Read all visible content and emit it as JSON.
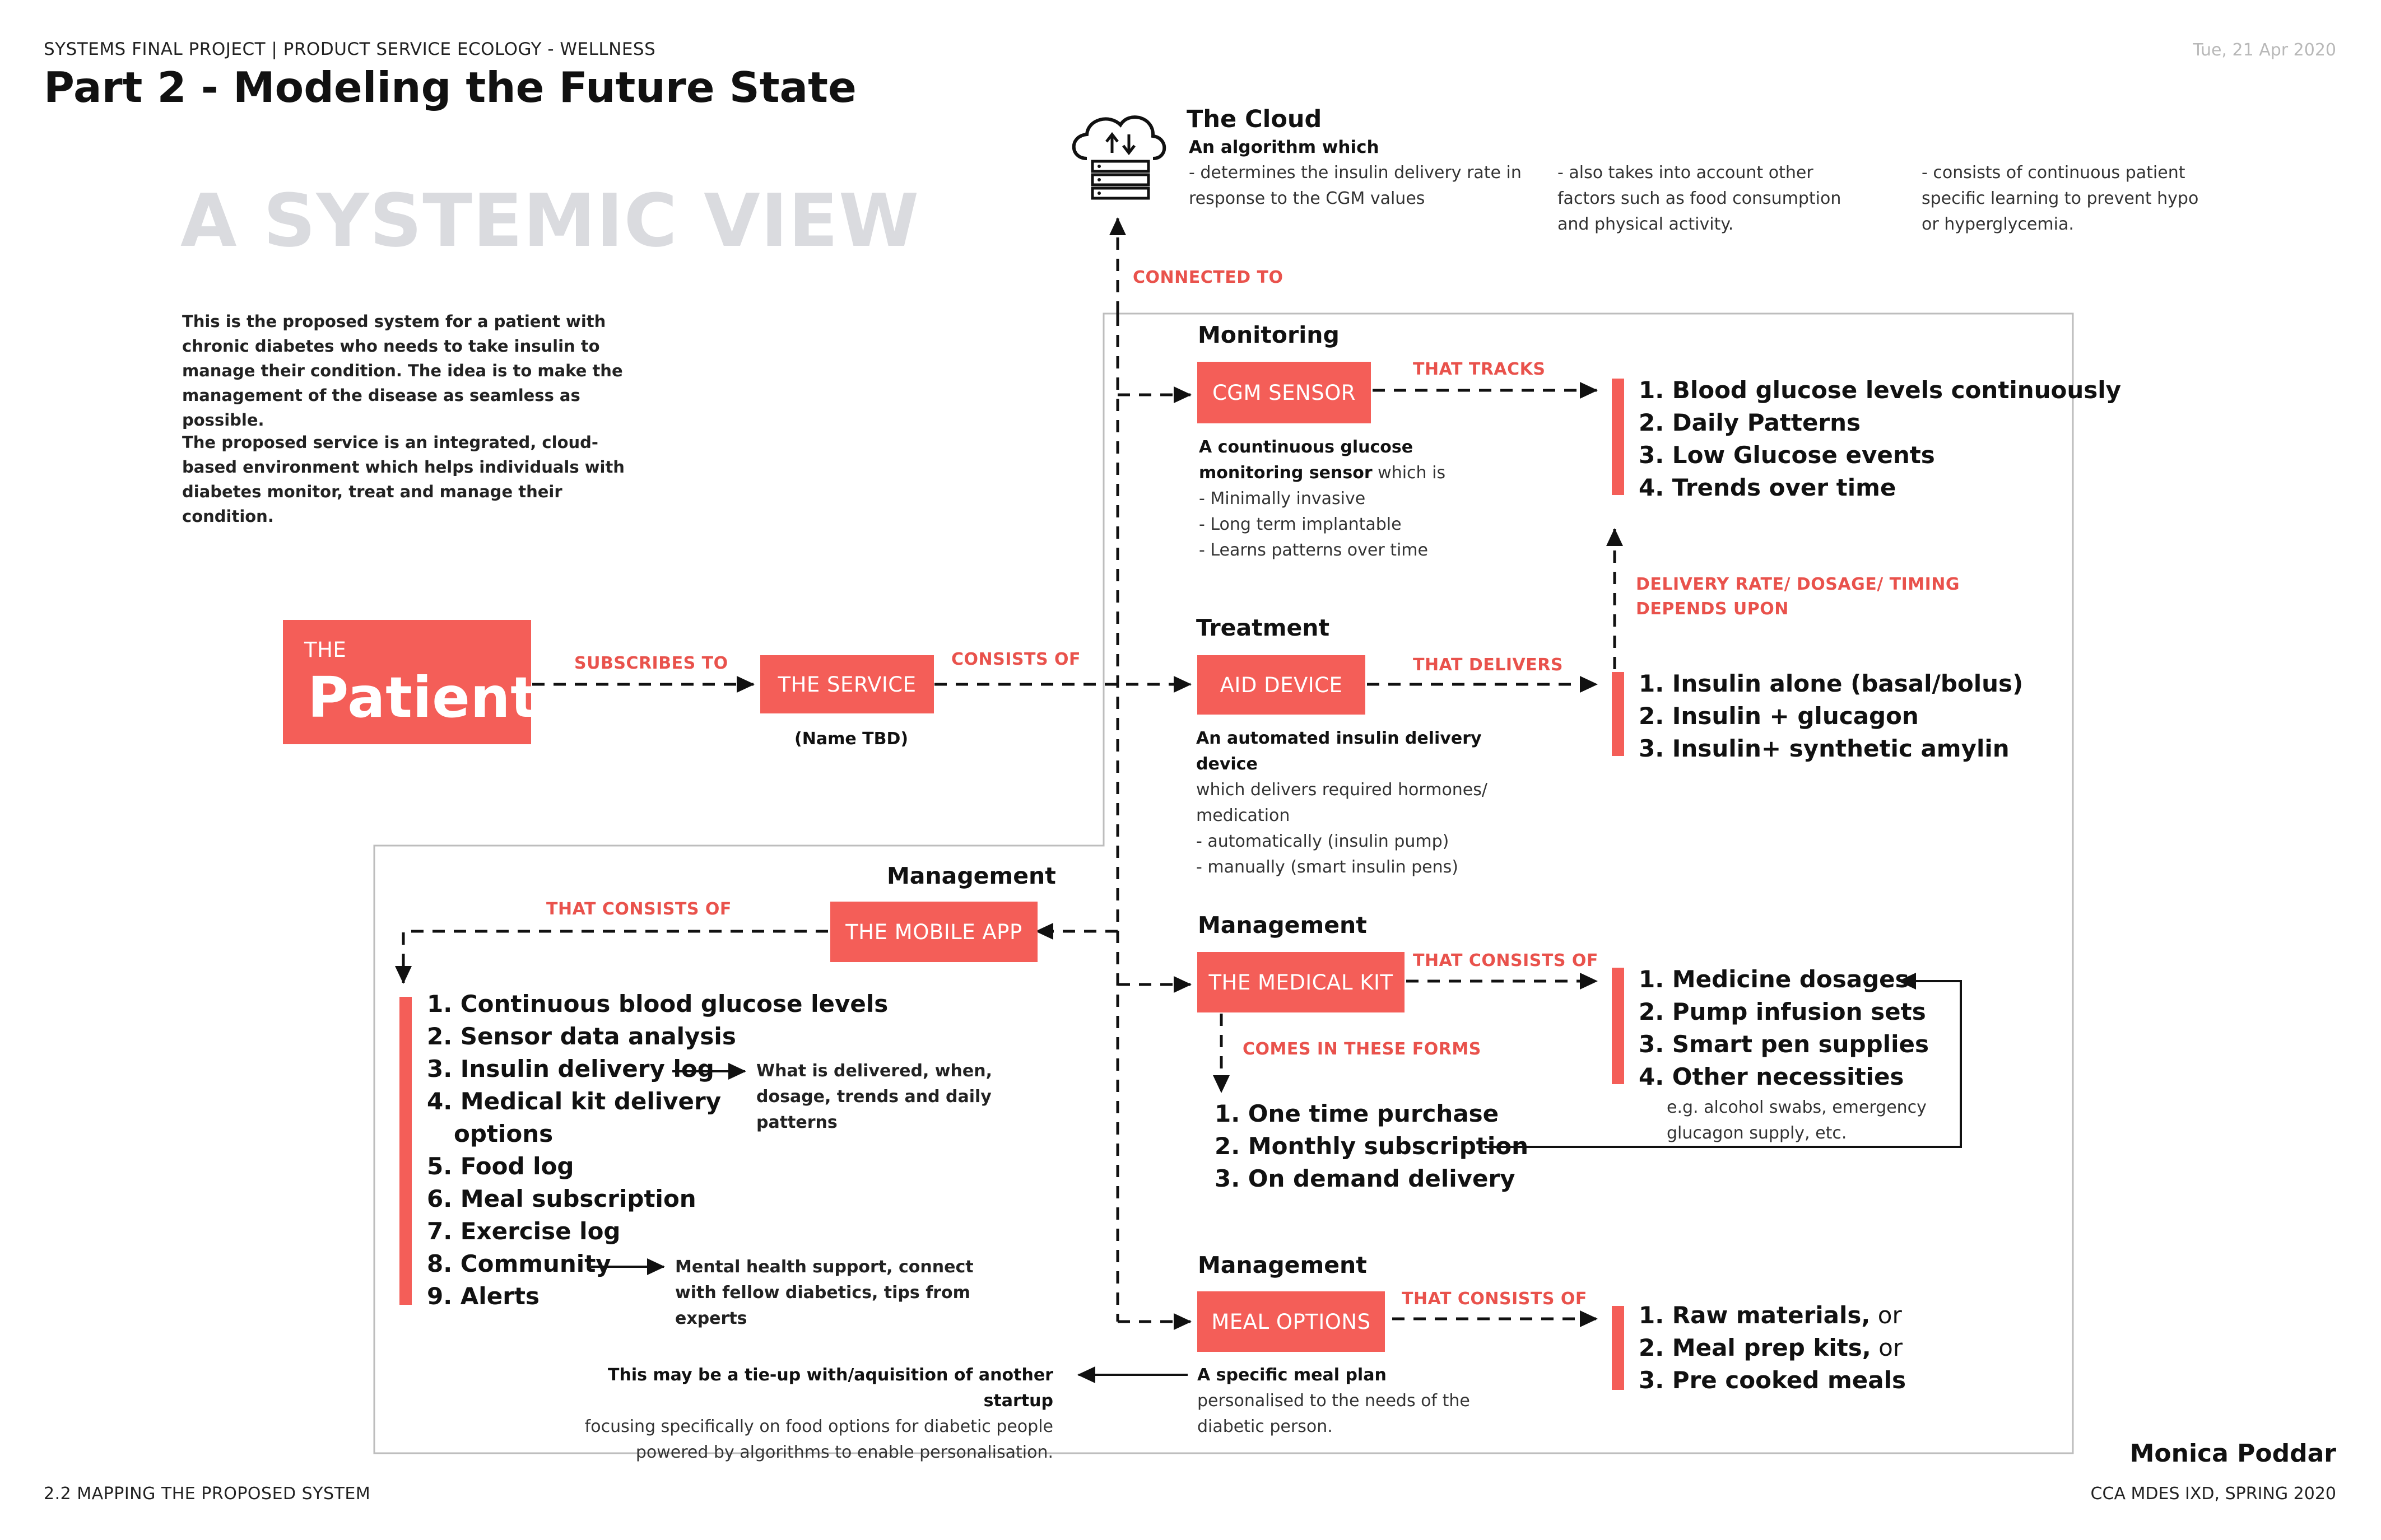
{
  "header": {
    "project": "SYSTEMS FINAL PROJECT | PRODUCT SERVICE ECOLOGY - WELLNESS",
    "title": "Part 2 - Modeling the Future State",
    "date": "Tue, 21 Apr 2020"
  },
  "systemic_view": "A SYSTEMIC VIEW",
  "intro": {
    "p1": "This is the proposed system for a patient with chronic diabetes who needs to take insulin to manage their condition. The idea is to make the management of the disease as seamless as possible.",
    "p2": "The proposed service is an integrated, cloud-based environment which helps individuals with diabetes monitor, treat and manage their condition."
  },
  "cloud": {
    "title": "The Cloud",
    "subtitle": "An algorithm which",
    "notes": [
      "- determines the insulin delivery rate in response to the CGM values",
      "- also takes into account other factors such as food consumption and physical activity.",
      "- consists of continuous patient specific learning to prevent hypo or hyperglycemia."
    ],
    "connector": "CONNECTED TO"
  },
  "patient": {
    "pre": "THE",
    "main": "Patient"
  },
  "service": {
    "label": "THE SERVICE",
    "note": "(Name TBD)"
  },
  "connectors": {
    "subscribes": "SUBSCRIBES TO",
    "consists": "CONSISTS OF",
    "tracks": "THAT TRACKS",
    "delivers": "THAT DELIVERS",
    "rate_line1": "DELIVERY RATE/ DOSAGE/ TIMING",
    "rate_line2": "DEPENDS UPON",
    "kit_consists": "THAT CONSISTS OF",
    "forms": "COMES IN THESE FORMS",
    "meal_consists": "THAT CONSISTS OF",
    "app_consists": "THAT CONSISTS OF"
  },
  "monitoring": {
    "section": "Monitoring",
    "box": "CGM SENSOR",
    "desc_bold": "A countinuous glucose monitoring sensor",
    "desc_rest": " which is",
    "bullets": [
      "- Minimally invasive",
      "- Long term implantable",
      "- Learns patterns over time"
    ],
    "list": [
      "1. Blood glucose levels continuously",
      "2. Daily Patterns",
      "3. Low Glucose events",
      "4. Trends over time"
    ]
  },
  "treatment": {
    "section": "Treatment",
    "box": "AID DEVICE",
    "desc_bold": "An automated insulin delivery device",
    "desc_rest": "which delivers required hormones/ medication",
    "bullets": [
      "- automatically (insulin pump)",
      "- manually (smart insulin pens)"
    ],
    "list": [
      "1. Insulin alone (basal/bolus)",
      "2. Insulin + glucagon",
      "3. Insulin+ synthetic amylin"
    ]
  },
  "medkit": {
    "section": "Management",
    "box": "THE MEDICAL KIT",
    "list": [
      "1. Medicine dosages",
      "2. Pump infusion sets",
      "3. Smart pen supplies",
      "4. Other necessities"
    ],
    "note": "e.g. alcohol swabs, emergency glucagon supply, etc.",
    "forms": [
      "1. One time purchase",
      "2. Monthly subscription",
      "3. On demand delivery"
    ]
  },
  "meal": {
    "section": "Management",
    "box": "MEAL OPTIONS",
    "desc_bold": "A specific meal plan",
    "desc_rest": "personalised to the needs of the diabetic person.",
    "list": [
      {
        "bold": "1. Raw materials,",
        "plain": " or"
      },
      {
        "bold": "2. Meal prep kits,",
        "plain": " or"
      },
      {
        "bold": "3. Pre cooked meals",
        "plain": ""
      }
    ],
    "tieup_bold": "This may be a tie-up with/aquisition of another startup",
    "tieup_rest": "focusing specifically on food options for diabetic people powered by algorithms to enable personalisation."
  },
  "app": {
    "section": "Management",
    "box": "THE MOBILE APP",
    "list": [
      "1. Continuous blood glucose levels",
      "2. Sensor data analysis",
      "3. Insulin delivery log",
      "4. Medical kit delivery",
      "options",
      "5. Food log",
      "6. Meal subscription",
      "7. Exercise log",
      "8. Community",
      "9. Alerts"
    ],
    "insulin_note": "What is delivered, when, dosage, trends and daily patterns",
    "community_note": "Mental health support, connect with fellow diabetics, tips from experts"
  },
  "footer": {
    "section": "2.2 MAPPING THE PROPOSED SYSTEM",
    "author": "Monica Poddar",
    "program": "CCA MDES IXD, SPRING 2020"
  },
  "colors": {
    "accent": "#f45e58",
    "connector_text": "#e9524c",
    "watermark": "#dadbdf"
  }
}
